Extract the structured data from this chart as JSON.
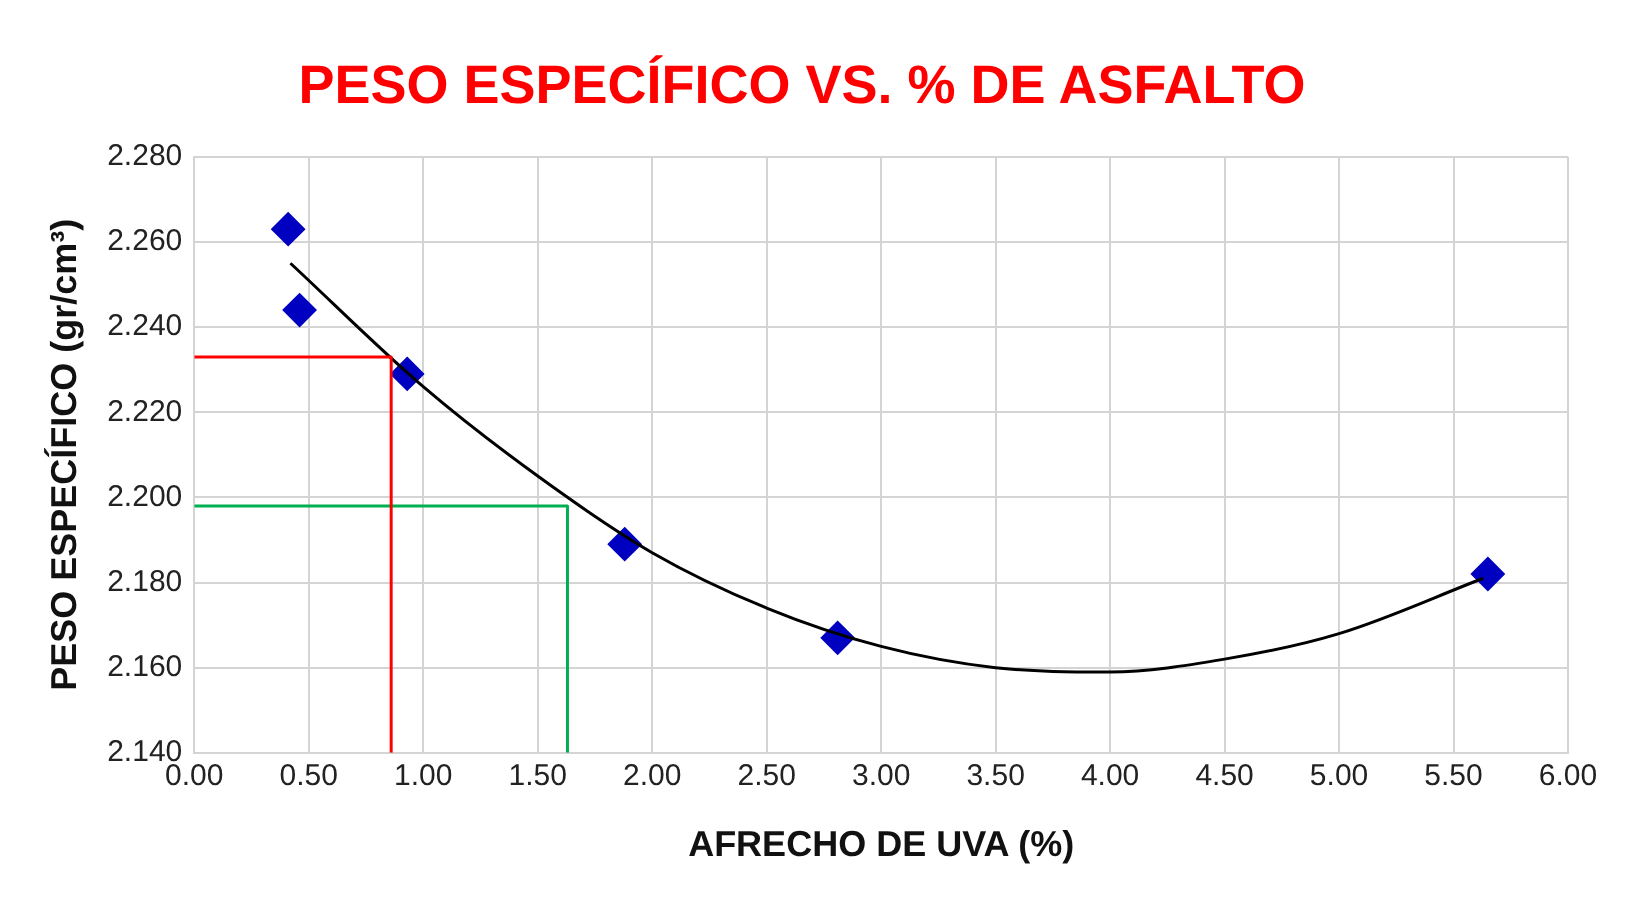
{
  "chart_data": {
    "type": "scatter",
    "title": "PESO ESPECÍFICO VS. % DE ASFALTO",
    "xlabel": "AFRECHO DE UVA (%)",
    "ylabel": "PESO ESPECÍFICO (gr/cm³)",
    "marker": "diamond",
    "grid": true,
    "legend": false,
    "xlim": [
      0,
      6
    ],
    "ylim": [
      2.14,
      2.28
    ],
    "xticks": [
      {
        "value": 0,
        "label": "0.00"
      },
      {
        "value": 0.5,
        "label": "0.50"
      },
      {
        "value": 1,
        "label": "1.00"
      },
      {
        "value": 1.5,
        "label": "1.50"
      },
      {
        "value": 2,
        "label": "2.00"
      },
      {
        "value": 2.5,
        "label": "2.50"
      },
      {
        "value": 3,
        "label": "3.00"
      },
      {
        "value": 3.5,
        "label": "3.50"
      },
      {
        "value": 4,
        "label": "4.00"
      },
      {
        "value": 4.5,
        "label": "4.50"
      },
      {
        "value": 5,
        "label": "5.00"
      },
      {
        "value": 5.5,
        "label": "5.50"
      },
      {
        "value": 6,
        "label": "6.00"
      }
    ],
    "yticks": [
      {
        "value": 2.14,
        "label": "2.140"
      },
      {
        "value": 2.16,
        "label": "2.160"
      },
      {
        "value": 2.18,
        "label": "2.180"
      },
      {
        "value": 2.2,
        "label": "2.200"
      },
      {
        "value": 2.22,
        "label": "2.220"
      },
      {
        "value": 2.24,
        "label": "2.240"
      },
      {
        "value": 2.26,
        "label": "2.260"
      },
      {
        "value": 2.28,
        "label": "2.280"
      }
    ],
    "series": [
      {
        "type": "line",
        "color": "#ff0000",
        "marker": "none",
        "x": [
          0,
          0.86,
          0.86
        ],
        "values": [
          2.233,
          2.233,
          2.14
        ]
      },
      {
        "type": "line",
        "color": "#00b050",
        "marker": "none",
        "x": [
          0,
          1.63,
          1.63
        ],
        "values": [
          2.198,
          2.198,
          2.14
        ]
      },
      {
        "type": "line",
        "color": "#000000",
        "marker": "none",
        "x": [
          0.42,
          1,
          1.5,
          2,
          2.5,
          3,
          3.5,
          4,
          4.5,
          5,
          5.63
        ],
        "values": [
          2.255,
          2.226,
          2.205,
          2.187,
          2.174,
          2.165,
          2.16,
          2.159,
          2.162,
          2.168,
          2.181
        ]
      },
      {
        "type": "scatter",
        "color": "#0000c0",
        "x": [
          0.41,
          0.46,
          0.93,
          1.88,
          2.81,
          5.65
        ],
        "values": [
          2.263,
          2.244,
          2.229,
          2.189,
          2.167,
          2.182
        ]
      }
    ]
  }
}
